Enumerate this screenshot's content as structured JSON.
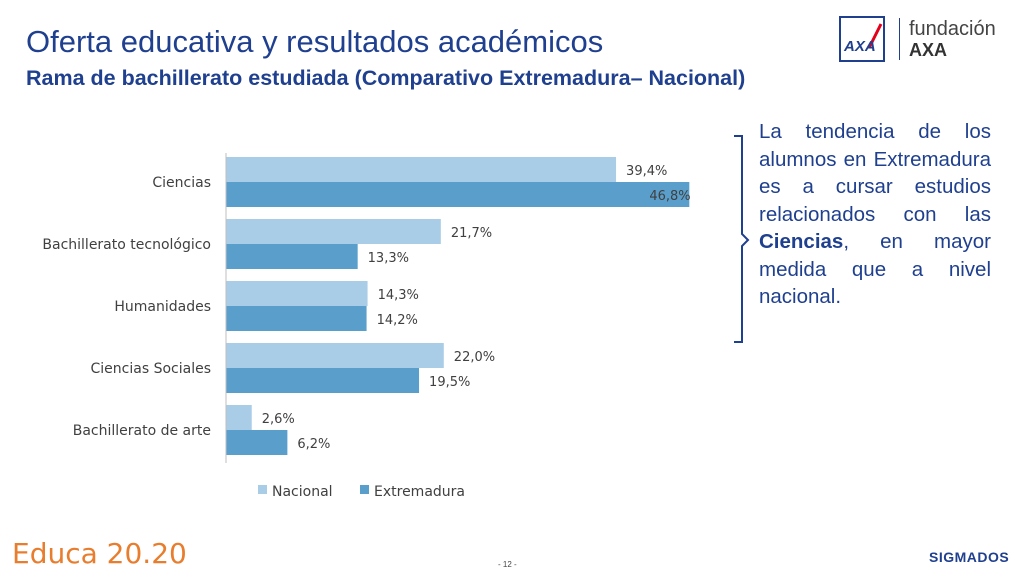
{
  "header": {
    "title": "Oferta educativa y resultados académicos",
    "subtitle": "Rama de bachillerato estudiada (Comparativo Extremadura– Nacional)"
  },
  "logo": {
    "word1": "fundación",
    "word2": "AXA",
    "mark": "AXA",
    "colors": {
      "blue": "#1f3f8f",
      "red": "#e2001a"
    }
  },
  "chart_data": {
    "type": "bar",
    "orientation": "horizontal",
    "categories": [
      "Ciencias",
      "Bachillerato tecnológico",
      "Humanidades",
      "Ciencias Sociales",
      "Bachillerato de arte"
    ],
    "series": [
      {
        "name": "Nacional",
        "color": "#a9cde6",
        "values": [
          39.4,
          21.7,
          14.3,
          22.0,
          2.6
        ],
        "labels": [
          "39,4%",
          "21,7%",
          "14,3%",
          "22,0%",
          "2,6%"
        ]
      },
      {
        "name": "Extremadura",
        "color": "#5a9fcb",
        "values": [
          46.8,
          13.3,
          14.2,
          19.5,
          6.2
        ],
        "labels": [
          "46,8%",
          "13,3%",
          "14,2%",
          "19,5%",
          "6,2%"
        ]
      }
    ],
    "xlim": [
      0,
      50
    ],
    "grid": false,
    "legend_position": "bottom"
  },
  "note": {
    "before": "La tendencia de los alumnos en Extremadura es a cursar estudios relacionados con las ",
    "highlight": "Ciencias",
    "after": ", en mayor medida que a nivel nacional."
  },
  "footer": {
    "brand": "Educa 20.20",
    "page": "- 12 -",
    "company": "SIGMADOS",
    "brand_color": "#e87d2e"
  }
}
